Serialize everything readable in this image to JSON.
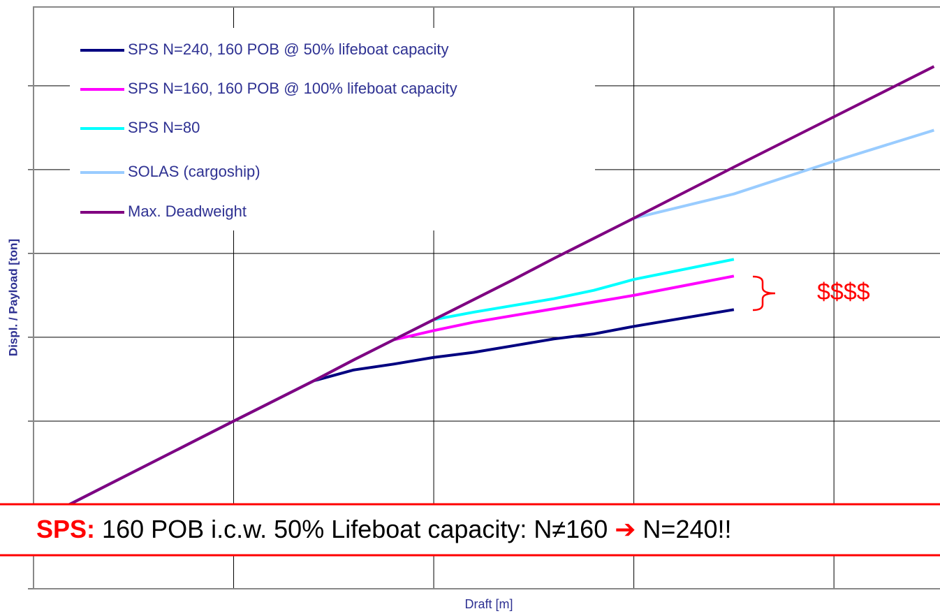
{
  "chart_data": {
    "type": "line",
    "x_label": "Draft [m]",
    "y_label": "Displ. / Payload [ton]",
    "x": [
      0.15,
      1,
      1.4,
      1.6,
      1.8,
      2,
      2.2,
      2.4,
      2.6,
      2.8,
      3,
      3.5,
      4,
      4.5
    ],
    "xlim": [
      0,
      4.53
    ],
    "ylim": [
      0,
      6.94
    ],
    "xticks": [
      0,
      1,
      2,
      3,
      4
    ],
    "yticks": [
      0,
      1,
      2,
      3,
      4,
      5,
      6
    ],
    "grid": true,
    "legend": "upper left",
    "series": [
      {
        "name": "SPS N=240, 160 POB @ 50% lifeboat capacity",
        "color": "#000080",
        "values": [
          0.97,
          2.0,
          2.48,
          2.61,
          2.68,
          2.76,
          2.82,
          2.9,
          2.98,
          3.04,
          3.13,
          3.33,
          null,
          null
        ]
      },
      {
        "name": "SPS N=160, 160 POB @ 100% lifeboat capacity",
        "color": "#ff00ff",
        "values": [
          0.97,
          2.0,
          2.48,
          2.73,
          2.97,
          3.08,
          3.18,
          3.26,
          3.34,
          3.42,
          3.5,
          3.73,
          null,
          null
        ]
      },
      {
        "name": "SPS N=80",
        "color": "#00ffff",
        "values": [
          0.97,
          2.0,
          2.48,
          2.73,
          2.97,
          3.21,
          3.3,
          3.38,
          3.46,
          3.56,
          3.69,
          3.93,
          null,
          null
        ]
      },
      {
        "name": "SOLAS (cargoship)",
        "color": "#99ccff",
        "values": [
          0.97,
          2.0,
          2.48,
          2.73,
          2.97,
          3.21,
          3.45,
          3.69,
          3.94,
          4.18,
          4.42,
          4.71,
          5.1,
          5.47
        ]
      },
      {
        "name": "Max. Deadweight",
        "color": "#800080",
        "values": [
          0.97,
          2.0,
          2.48,
          2.73,
          2.97,
          3.21,
          3.45,
          3.69,
          3.94,
          4.18,
          4.42,
          5.03,
          5.63,
          6.23
        ]
      }
    ],
    "annotation": "$$$$",
    "banner": {
      "label": "SPS:",
      "text": "160 POB i.c.w. 50% Lifeboat capacity: N≠160",
      "arrow": "➔",
      "text2": "N=240!!"
    }
  }
}
